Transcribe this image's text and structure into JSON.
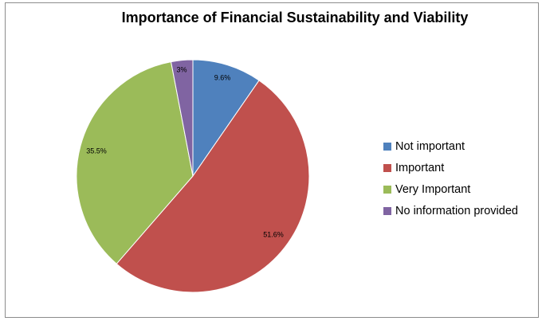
{
  "chart_data": {
    "type": "pie",
    "title": "Importance of Financial Sustainability and Viability",
    "categories": [
      "Not important",
      "Important",
      "Very Important",
      "No information provided"
    ],
    "values": [
      9.6,
      51.6,
      35.5,
      3
    ],
    "labels": [
      "9.6%",
      "51.6%",
      "35.5%",
      "3%"
    ],
    "colors": [
      "#4f81bd",
      "#c0504d",
      "#9bbb59",
      "#8064a2"
    ],
    "legend_position": "right",
    "start_angle": "12 o'clock, clockwise"
  }
}
